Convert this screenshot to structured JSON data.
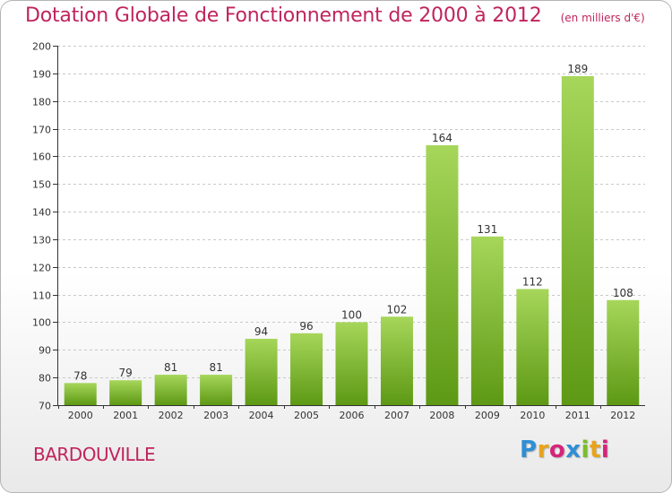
{
  "title": "Dotation Globale de Fonctionnement de 2000 à 2012",
  "unit": "(en milliers d'€)",
  "commune": "BARDOUVILLE",
  "brand": {
    "letters": [
      {
        "ch": "P",
        "color": "#2f8fd6"
      },
      {
        "ch": "r",
        "color": "#e8a31c"
      },
      {
        "ch": "o",
        "color": "#d6247a"
      },
      {
        "ch": "x",
        "color": "#2f8fd6"
      },
      {
        "ch": "i",
        "color": "#7bbd2a"
      },
      {
        "ch": "t",
        "color": "#e8a31c"
      },
      {
        "ch": "i",
        "color": "#d6247a"
      }
    ]
  },
  "colors": {
    "title": "#c0245c",
    "bar_top": "#a6d65a",
    "bar_bottom": "#5d9914",
    "grid": "#c8c8c8",
    "axis": "#333333"
  },
  "chart_data": {
    "type": "bar",
    "categories": [
      "2000",
      "2001",
      "2002",
      "2003",
      "2004",
      "2005",
      "2006",
      "2007",
      "2008",
      "2009",
      "2010",
      "2011",
      "2012"
    ],
    "values": [
      78,
      79,
      81,
      81,
      94,
      96,
      100,
      102,
      164,
      131,
      112,
      189,
      108
    ],
    "ylim": [
      70,
      200
    ],
    "yticks": [
      70,
      80,
      90,
      100,
      110,
      120,
      130,
      140,
      150,
      160,
      170,
      180,
      190,
      200
    ],
    "grid": true,
    "data_labels": true
  }
}
